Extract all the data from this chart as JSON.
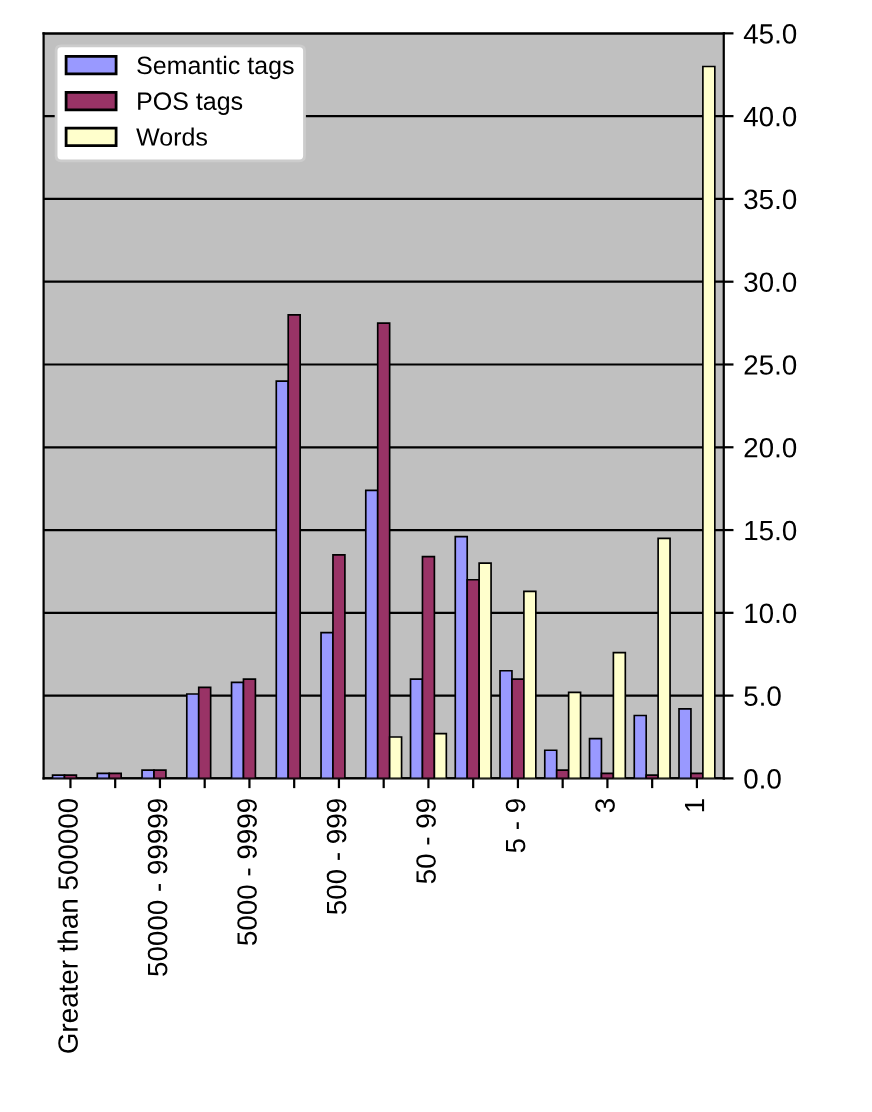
{
  "chart_data": {
    "type": "bar",
    "categories": [
      "Greater than 500000",
      null,
      "50000 - 99999",
      null,
      "5000 - 9999",
      null,
      "500 - 999",
      null,
      "50 - 99",
      null,
      "5 - 9",
      null,
      "3",
      null,
      "1"
    ],
    "series": [
      {
        "name": "Semantic tags",
        "color": "#9999ff",
        "values": [
          0.2,
          0.3,
          0.5,
          5.1,
          5.8,
          24.0,
          8.8,
          17.4,
          6.0,
          14.6,
          6.5,
          1.7,
          2.4,
          3.8,
          4.2
        ]
      },
      {
        "name": "POS tags",
        "color": "#993366",
        "values": [
          0.2,
          0.3,
          0.5,
          5.5,
          6.0,
          28.0,
          13.5,
          27.5,
          13.4,
          12.0,
          6.0,
          0.5,
          0.3,
          0.2,
          0.3
        ]
      },
      {
        "name": "Words",
        "color": "#ffffcc",
        "values": [
          null,
          null,
          null,
          null,
          null,
          null,
          null,
          2.5,
          2.7,
          13.0,
          11.3,
          5.2,
          7.6,
          14.5,
          43.0
        ]
      }
    ],
    "ylim": [
      0,
      45
    ],
    "yticks": [
      {
        "value": 0,
        "label": "0.0"
      },
      {
        "value": 5,
        "label": "5.0"
      },
      {
        "value": 10,
        "label": "10.0"
      },
      {
        "value": 15,
        "label": "15.0"
      },
      {
        "value": 20,
        "label": "20.0"
      },
      {
        "value": 25,
        "label": "25.0"
      },
      {
        "value": 30,
        "label": "30.0"
      },
      {
        "value": 35,
        "label": "35.0"
      },
      {
        "value": 40,
        "label": "40.0"
      },
      {
        "value": 45,
        "label": "45.0"
      }
    ],
    "grid": "y",
    "legend": "top left"
  }
}
